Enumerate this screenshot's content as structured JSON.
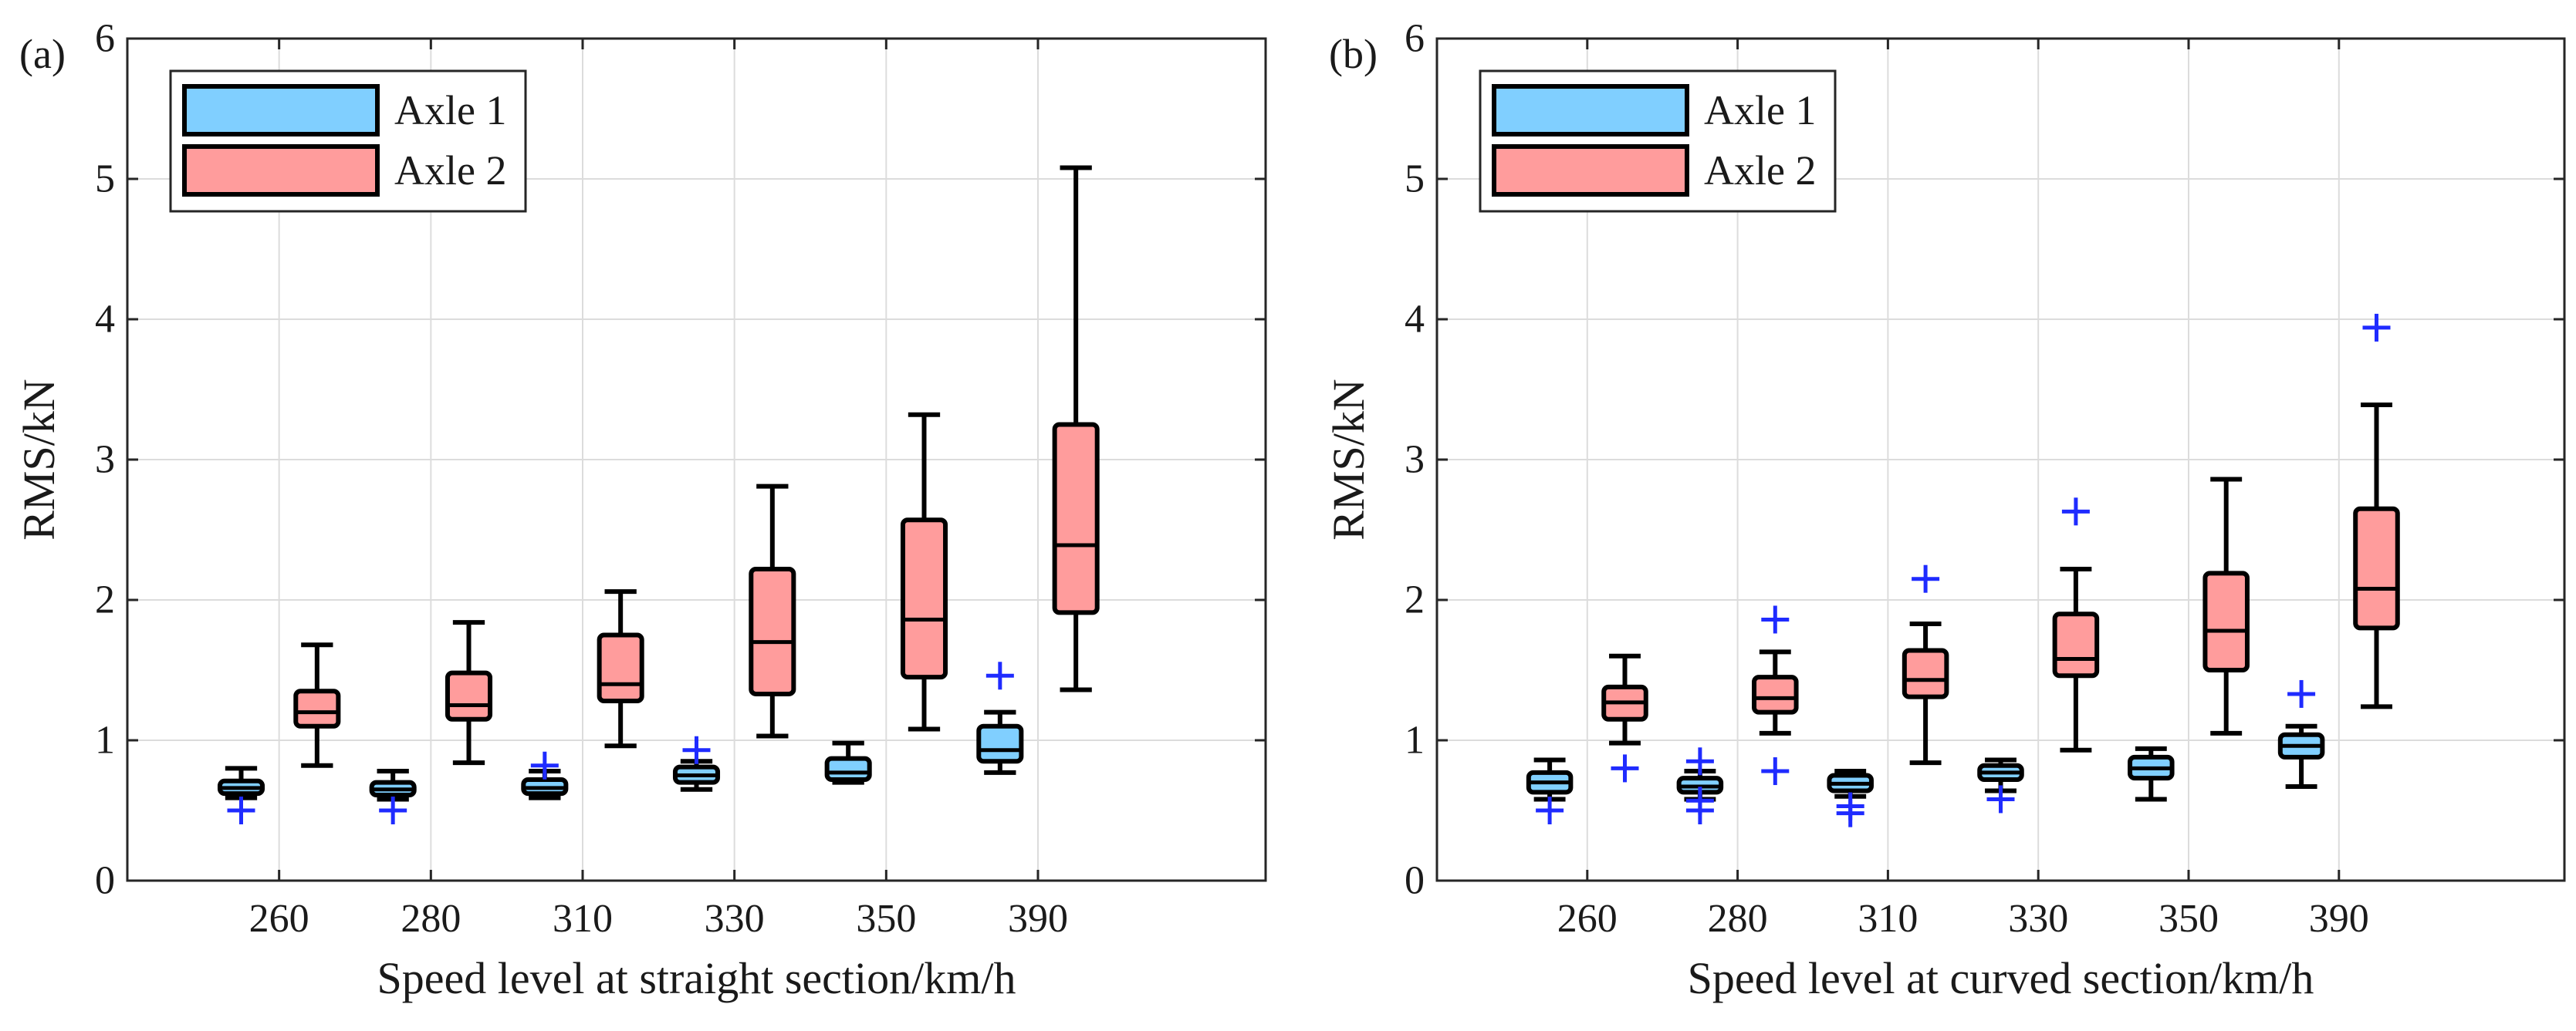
{
  "chart_data": [
    {
      "type": "box",
      "panel_label": "(a)",
      "xlabel": "Speed level at straight section/km/h",
      "ylabel": "RMS/kN",
      "categories": [
        "260",
        "280",
        "310",
        "330",
        "350",
        "390"
      ],
      "ylim": [
        0,
        6
      ],
      "yticks": [
        0,
        1,
        2,
        3,
        4,
        5,
        6
      ],
      "grid": true,
      "legend_position": "top-left",
      "series": [
        {
          "name": "Axle 1",
          "color": "#80cfff",
          "boxes": [
            {
              "min": 0.59,
              "q1": 0.62,
              "median": 0.66,
              "q3": 0.71,
              "max": 0.8,
              "outliers": [
                0.5
              ]
            },
            {
              "min": 0.58,
              "q1": 0.61,
              "median": 0.65,
              "q3": 0.7,
              "max": 0.78,
              "outliers": [
                0.5
              ]
            },
            {
              "min": 0.59,
              "q1": 0.62,
              "median": 0.66,
              "q3": 0.72,
              "max": 0.78,
              "outliers": [
                0.82
              ]
            },
            {
              "min": 0.65,
              "q1": 0.7,
              "median": 0.75,
              "q3": 0.81,
              "max": 0.85,
              "outliers": [
                0.93
              ]
            },
            {
              "min": 0.7,
              "q1": 0.72,
              "median": 0.77,
              "q3": 0.87,
              "max": 0.98,
              "outliers": []
            },
            {
              "min": 0.77,
              "q1": 0.85,
              "median": 0.93,
              "q3": 1.1,
              "max": 1.2,
              "outliers": [
                1.46
              ]
            }
          ]
        },
        {
          "name": "Axle 2",
          "color": "#ff9c9c",
          "boxes": [
            {
              "min": 0.82,
              "q1": 1.1,
              "median": 1.2,
              "q3": 1.35,
              "max": 1.68,
              "outliers": []
            },
            {
              "min": 0.84,
              "q1": 1.15,
              "median": 1.25,
              "q3": 1.48,
              "max": 1.84,
              "outliers": []
            },
            {
              "min": 0.96,
              "q1": 1.28,
              "median": 1.4,
              "q3": 1.75,
              "max": 2.06,
              "outliers": []
            },
            {
              "min": 1.03,
              "q1": 1.33,
              "median": 1.7,
              "q3": 2.22,
              "max": 2.81,
              "outliers": []
            },
            {
              "min": 1.08,
              "q1": 1.45,
              "median": 1.86,
              "q3": 2.57,
              "max": 3.32,
              "outliers": []
            },
            {
              "min": 1.36,
              "q1": 1.91,
              "median": 2.39,
              "q3": 3.25,
              "max": 5.08,
              "outliers": []
            }
          ]
        }
      ]
    },
    {
      "type": "box",
      "panel_label": "(b)",
      "xlabel": "Speed level at curved section/km/h",
      "ylabel": "RMS/kN",
      "categories": [
        "260",
        "280",
        "310",
        "330",
        "350",
        "390"
      ],
      "ylim": [
        0,
        6
      ],
      "yticks": [
        0,
        1,
        2,
        3,
        4,
        5,
        6
      ],
      "grid": true,
      "legend_position": "top-left",
      "series": [
        {
          "name": "Axle 1",
          "color": "#80cfff",
          "boxes": [
            {
              "min": 0.58,
              "q1": 0.63,
              "median": 0.7,
              "q3": 0.77,
              "max": 0.86,
              "outliers": [
                0.5
              ]
            },
            {
              "min": 0.58,
              "q1": 0.63,
              "median": 0.67,
              "q3": 0.73,
              "max": 0.78,
              "outliers": [
                0.5,
                0.57,
                0.85
              ]
            },
            {
              "min": 0.6,
              "q1": 0.64,
              "median": 0.69,
              "q3": 0.75,
              "max": 0.78,
              "outliers": [
                0.48,
                0.53
              ]
            },
            {
              "min": 0.64,
              "q1": 0.72,
              "median": 0.77,
              "q3": 0.82,
              "max": 0.86,
              "outliers": [
                0.58
              ]
            },
            {
              "min": 0.58,
              "q1": 0.73,
              "median": 0.8,
              "q3": 0.88,
              "max": 0.94,
              "outliers": []
            },
            {
              "min": 0.67,
              "q1": 0.88,
              "median": 0.96,
              "q3": 1.04,
              "max": 1.1,
              "outliers": [
                1.33
              ]
            }
          ]
        },
        {
          "name": "Axle 2",
          "color": "#ff9c9c",
          "boxes": [
            {
              "min": 0.98,
              "q1": 1.15,
              "median": 1.27,
              "q3": 1.38,
              "max": 1.6,
              "outliers": [
                0.8
              ]
            },
            {
              "min": 1.05,
              "q1": 1.2,
              "median": 1.3,
              "q3": 1.45,
              "max": 1.63,
              "outliers": [
                0.78,
                1.86
              ]
            },
            {
              "min": 0.84,
              "q1": 1.31,
              "median": 1.43,
              "q3": 1.64,
              "max": 1.83,
              "outliers": [
                2.15
              ]
            },
            {
              "min": 0.93,
              "q1": 1.46,
              "median": 1.58,
              "q3": 1.9,
              "max": 2.22,
              "outliers": [
                2.63
              ]
            },
            {
              "min": 1.05,
              "q1": 1.5,
              "median": 1.78,
              "q3": 2.19,
              "max": 2.86,
              "outliers": []
            },
            {
              "min": 1.24,
              "q1": 1.8,
              "median": 2.08,
              "q3": 2.65,
              "max": 3.39,
              "outliers": [
                3.94
              ]
            }
          ]
        }
      ]
    }
  ]
}
